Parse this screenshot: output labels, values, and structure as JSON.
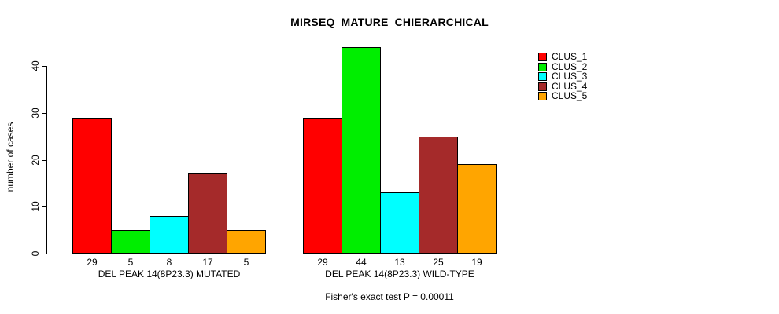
{
  "figure": {
    "title": "MIRSEQ_MATURE_CHIERARCHICAL",
    "footnote": "Fisher's exact test P = 0.00011"
  },
  "chart_data": {
    "type": "bar",
    "title": "MIRSEQ_MATURE_CHIERARCHICAL",
    "ylabel": "number of cases",
    "xlabel": "",
    "ylim": [
      0,
      44
    ],
    "yticks": [
      0,
      10,
      20,
      30,
      40
    ],
    "grid": false,
    "legend_position": "right",
    "legend": [
      {
        "label": "CLUS_1",
        "color": "#FF0000"
      },
      {
        "label": "CLUS_2",
        "color": "#00EE00"
      },
      {
        "label": "CLUS_3",
        "color": "#00FFFF"
      },
      {
        "label": "CLUS_4",
        "color": "#A52A2A"
      },
      {
        "label": "CLUS_5",
        "color": "#FFA500"
      }
    ],
    "groups": [
      {
        "label": "DEL PEAK 14(8P23.3) MUTATED",
        "values": [
          29,
          5,
          8,
          17,
          5
        ]
      },
      {
        "label": "DEL PEAK 14(8P23.3) WILD-TYPE",
        "values": [
          29,
          44,
          13,
          25,
          19
        ]
      }
    ],
    "bar_value_labels_shown": true,
    "annotation": "Fisher's exact test P = 0.00011",
    "axis_color": "#000000",
    "background_color": "#FFFFFF"
  }
}
